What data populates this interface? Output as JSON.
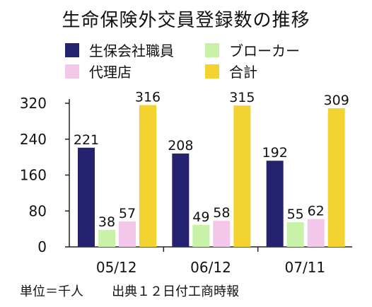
{
  "title": "生命保険外交員登録数の推移",
  "legend": [
    {
      "label": "生保会社職員",
      "color": "#252270"
    },
    {
      "label": "ブローカー",
      "color": "#c8f2a8"
    },
    {
      "label": "代理店",
      "color": "#f3c7e9"
    },
    {
      "label": "合計",
      "color": "#f3d330"
    }
  ],
  "footer": {
    "unit": "単位＝千人",
    "source": "出典１２日付工商時報"
  },
  "chart_data": {
    "type": "bar",
    "categories": [
      "05/12",
      "06/12",
      "07/11"
    ],
    "series": [
      {
        "name": "生保会社職員",
        "values": [
          221,
          208,
          192
        ],
        "color": "#252270"
      },
      {
        "name": "ブローカー",
        "values": [
          38,
          49,
          55
        ],
        "color": "#c8f2a8"
      },
      {
        "name": "代理店",
        "values": [
          57,
          58,
          62
        ],
        "color": "#f3c7e9"
      },
      {
        "name": "合計",
        "values": [
          316,
          315,
          309
        ],
        "color": "#f3d330"
      }
    ],
    "yticks": [
      0,
      80,
      160,
      240,
      320
    ],
    "ylim": [
      0,
      320
    ],
    "grid": false,
    "legend_position": "top"
  }
}
